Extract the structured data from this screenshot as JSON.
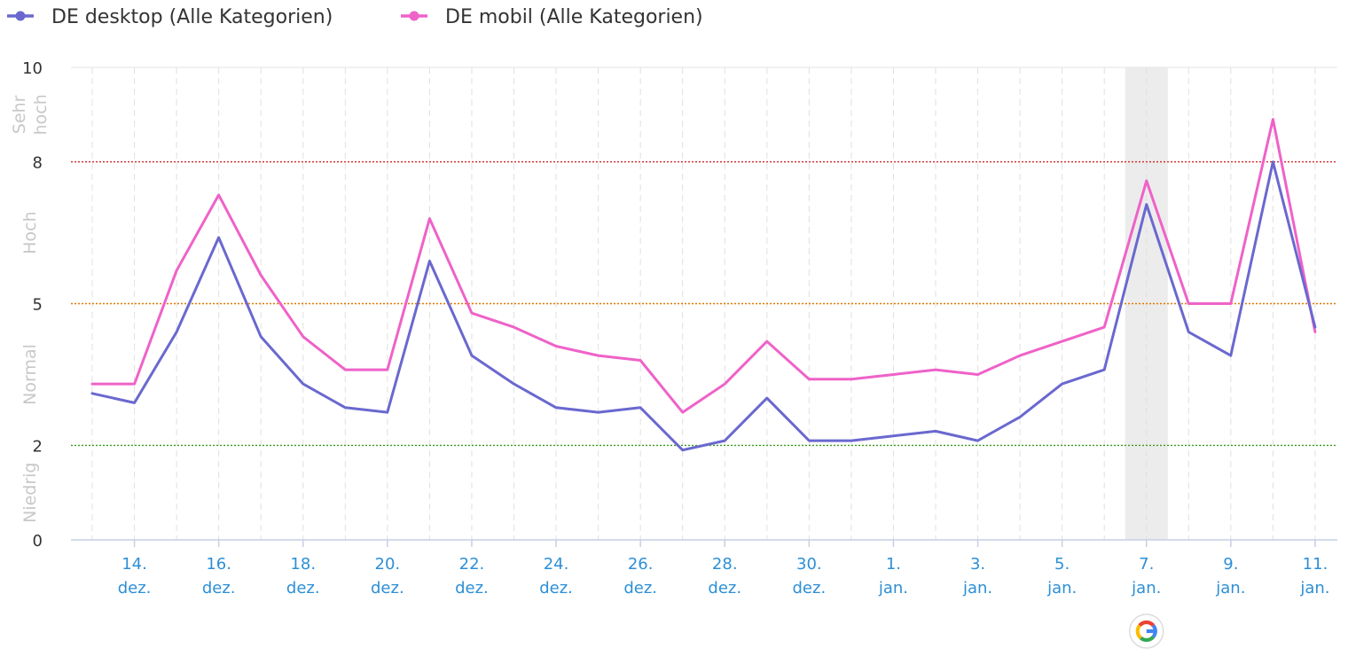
{
  "chart_data": {
    "type": "line",
    "title": "",
    "xlabel": "",
    "ylabel": "",
    "ylim": [
      0,
      10
    ],
    "y_ticks": [
      "0",
      "2",
      "5",
      "8",
      "10"
    ],
    "grid": true,
    "legend_position": "top-left",
    "zones": [
      {
        "label": "Niedrig",
        "from": 0,
        "to": 2
      },
      {
        "label": "Normal",
        "from": 2,
        "to": 5
      },
      {
        "label": "Hoch",
        "from": 5,
        "to": 8
      },
      {
        "label_lines": [
          "Sehr",
          "hoch"
        ],
        "from": 8,
        "to": 10
      }
    ],
    "thresholds": [
      {
        "value": 2,
        "color": "#3a9a1a"
      },
      {
        "value": 5,
        "color": "#e07800"
      },
      {
        "value": 8,
        "color": "#cc2222"
      }
    ],
    "x_ticks": [
      {
        "day": "14.",
        "month": "dez."
      },
      {
        "day": "16.",
        "month": "dez."
      },
      {
        "day": "18.",
        "month": "dez."
      },
      {
        "day": "20.",
        "month": "dez."
      },
      {
        "day": "22.",
        "month": "dez."
      },
      {
        "day": "24.",
        "month": "dez."
      },
      {
        "day": "26.",
        "month": "dez."
      },
      {
        "day": "28.",
        "month": "dez."
      },
      {
        "day": "30.",
        "month": "dez."
      },
      {
        "day": "1.",
        "month": "jan."
      },
      {
        "day": "3.",
        "month": "jan."
      },
      {
        "day": "5.",
        "month": "jan."
      },
      {
        "day": "7.",
        "month": "jan."
      },
      {
        "day": "9.",
        "month": "jan."
      },
      {
        "day": "11.",
        "month": "jan."
      }
    ],
    "x": [
      "13. dez.",
      "14. dez.",
      "15. dez.",
      "16. dez.",
      "17. dez.",
      "18. dez.",
      "19. dez.",
      "20. dez.",
      "21. dez.",
      "22. dez.",
      "23. dez.",
      "24. dez.",
      "25. dez.",
      "26. dez.",
      "27. dez.",
      "28. dez.",
      "29. dez.",
      "30. dez.",
      "31. dez.",
      "1. jan.",
      "2. jan.",
      "3. jan.",
      "4. jan.",
      "5. jan.",
      "6. jan.",
      "7. jan.",
      "8. jan.",
      "9. jan.",
      "10. jan.",
      "11. jan."
    ],
    "highlight_index": 25,
    "series": [
      {
        "name": "DE desktop (Alle Kategorien)",
        "color": "#6a68cf",
        "values": [
          3.1,
          2.9,
          4.4,
          6.4,
          4.3,
          3.3,
          2.8,
          2.7,
          5.9,
          3.9,
          3.3,
          2.8,
          2.7,
          2.8,
          1.9,
          2.1,
          3.0,
          2.1,
          2.1,
          2.2,
          2.3,
          2.1,
          2.6,
          3.3,
          3.6,
          7.1,
          4.4,
          3.9,
          8.0,
          4.5
        ]
      },
      {
        "name": "DE mobil (Alle Kategorien)",
        "color": "#ef62c8",
        "values": [
          3.3,
          3.3,
          5.7,
          7.3,
          5.6,
          4.3,
          3.6,
          3.6,
          6.8,
          4.8,
          4.5,
          4.1,
          3.9,
          3.8,
          2.7,
          3.3,
          4.2,
          3.4,
          3.4,
          3.5,
          3.6,
          3.5,
          3.9,
          4.2,
          4.5,
          7.6,
          5.0,
          5.0,
          8.9,
          4.4
        ]
      }
    ]
  },
  "google_marker": {
    "icon": "google-g-icon",
    "index": 25
  }
}
